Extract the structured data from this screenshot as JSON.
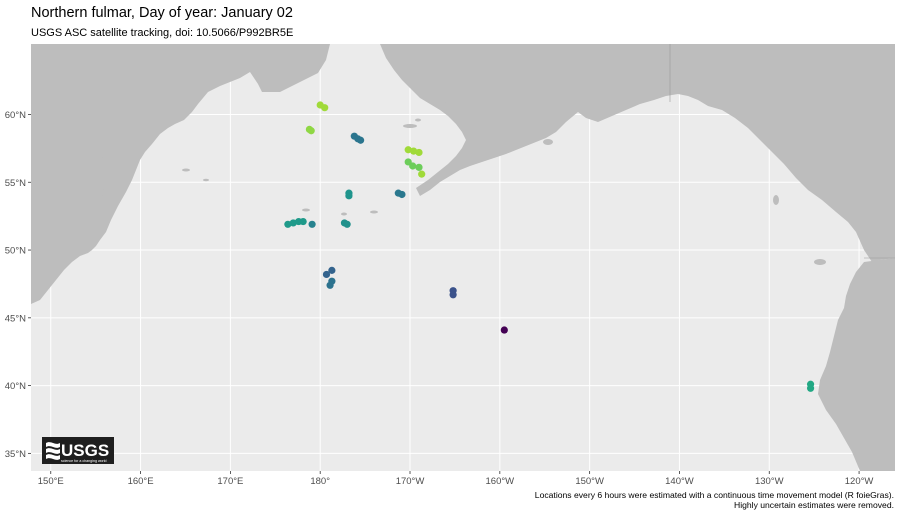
{
  "title": "Northern fulmar, Day of year: January 02",
  "subtitle": "USGS ASC satellite tracking, doi: 10.5066/P992BR5E",
  "caption": {
    "line1": "Locations every 6 hours were estimated with a continuous time movement model (R foieGras).",
    "line2": "Highly uncertain estimates were removed."
  },
  "logo": {
    "text": "USGS",
    "tagline": "science for a changing world"
  },
  "map": {
    "x_ticks": [
      {
        "lon": 150,
        "label": "150°E"
      },
      {
        "lon": 160,
        "label": "160°E"
      },
      {
        "lon": 170,
        "label": "170°E"
      },
      {
        "lon": 180,
        "label": "180°"
      },
      {
        "lon": 190,
        "label": "170°W"
      },
      {
        "lon": 200,
        "label": "160°W"
      },
      {
        "lon": 210,
        "label": "150°W"
      },
      {
        "lon": 220,
        "label": "140°W"
      },
      {
        "lon": 230,
        "label": "130°W"
      },
      {
        "lon": 240,
        "label": "120°W"
      }
    ],
    "y_ticks": [
      {
        "lat": 35,
        "label": "35°N"
      },
      {
        "lat": 40,
        "label": "40°N"
      },
      {
        "lat": 45,
        "label": "45°N"
      },
      {
        "lat": 50,
        "label": "50°N"
      },
      {
        "lat": 55,
        "label": "55°N"
      },
      {
        "lat": 60,
        "label": "60°N"
      }
    ],
    "colors": {
      "ocean": "#ebebeb",
      "land": "#bdbdbd",
      "grid": "#ffffff"
    }
  },
  "chart_data": {
    "type": "scatter",
    "title": "Northern fulmar, Day of year: January 02",
    "subtitle": "USGS ASC satellite tracking, doi: 10.5066/P992BR5E",
    "xlabel": "",
    "ylabel": "",
    "xlim": [
      147.8,
      244
    ],
    "ylim": [
      33.7,
      65.2
    ],
    "grid": true,
    "points": [
      {
        "lon": 180.5,
        "lat": 60.5,
        "color": "#a0da39"
      },
      {
        "lon": 180.0,
        "lat": 60.7,
        "color": "#a0da39"
      },
      {
        "lon": 179.0,
        "lat": 58.8,
        "color": "#8fd744"
      },
      {
        "lon": 178.8,
        "lat": 58.9,
        "color": "#8fd744"
      },
      {
        "lon": 183.8,
        "lat": 58.4,
        "color": "#2b758e"
      },
      {
        "lon": 184.2,
        "lat": 58.2,
        "color": "#2b758e"
      },
      {
        "lon": 184.5,
        "lat": 58.1,
        "color": "#2b758e"
      },
      {
        "lon": 189.8,
        "lat": 57.4,
        "color": "#a0da39"
      },
      {
        "lon": 190.4,
        "lat": 57.3,
        "color": "#a0da39"
      },
      {
        "lon": 191.0,
        "lat": 57.2,
        "color": "#a0da39"
      },
      {
        "lon": 189.8,
        "lat": 56.5,
        "color": "#6ccd5a"
      },
      {
        "lon": 190.3,
        "lat": 56.2,
        "color": "#6ccd5a"
      },
      {
        "lon": 191.0,
        "lat": 56.1,
        "color": "#6ccd5a"
      },
      {
        "lon": 191.3,
        "lat": 55.6,
        "color": "#a0da39"
      },
      {
        "lon": 183.2,
        "lat": 54.2,
        "color": "#1f948c"
      },
      {
        "lon": 183.2,
        "lat": 54.0,
        "color": "#1f948c"
      },
      {
        "lon": 188.7,
        "lat": 54.2,
        "color": "#2a788e"
      },
      {
        "lon": 189.1,
        "lat": 54.1,
        "color": "#2a788e"
      },
      {
        "lon": 176.4,
        "lat": 51.9,
        "color": "#1f9a8a"
      },
      {
        "lon": 177.0,
        "lat": 52.0,
        "color": "#1f9a8a"
      },
      {
        "lon": 177.6,
        "lat": 52.1,
        "color": "#1f9a8a"
      },
      {
        "lon": 178.1,
        "lat": 52.1,
        "color": "#1f9a8a"
      },
      {
        "lon": 179.1,
        "lat": 51.9,
        "color": "#26828e"
      },
      {
        "lon": 182.7,
        "lat": 52.0,
        "color": "#21918c"
      },
      {
        "lon": 183.0,
        "lat": 51.9,
        "color": "#21918c"
      },
      {
        "lon": 180.7,
        "lat": 48.2,
        "color": "#33638d"
      },
      {
        "lon": 181.3,
        "lat": 48.5,
        "color": "#33638d"
      },
      {
        "lon": 181.3,
        "lat": 47.7,
        "color": "#2c728e"
      },
      {
        "lon": 181.1,
        "lat": 47.4,
        "color": "#2c728e"
      },
      {
        "lon": 194.8,
        "lat": 47.0,
        "color": "#3b528b"
      },
      {
        "lon": 194.8,
        "lat": 46.7,
        "color": "#3b528b"
      },
      {
        "lon": 200.5,
        "lat": 44.1,
        "color": "#440154"
      },
      {
        "lon": 234.6,
        "lat": 40.1,
        "color": "#22a884"
      },
      {
        "lon": 234.6,
        "lat": 39.8,
        "color": "#22a884"
      }
    ]
  }
}
